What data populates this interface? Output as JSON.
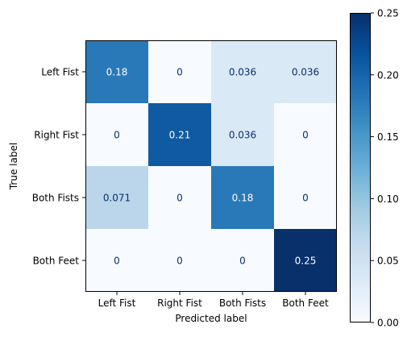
{
  "chart_data": {
    "type": "heatmap",
    "title": "",
    "xlabel": "Predicted label",
    "ylabel": "True label",
    "categories_x": [
      "Left Fist",
      "Right Fist",
      "Both Fists",
      "Both Feet"
    ],
    "categories_y": [
      "Left Fist",
      "Right Fist",
      "Both Fists",
      "Both Feet"
    ],
    "values": [
      [
        0.18,
        0,
        0.036,
        0.036
      ],
      [
        0,
        0.21,
        0.036,
        0
      ],
      [
        0.071,
        0,
        0.18,
        0
      ],
      [
        0,
        0,
        0,
        0.25
      ]
    ],
    "value_labels": [
      [
        "0.18",
        "0",
        "0.036",
        "0.036"
      ],
      [
        "0",
        "0.21",
        "0.036",
        "0"
      ],
      [
        "0.071",
        "0",
        "0.18",
        "0"
      ],
      [
        "0",
        "0",
        "0",
        "0.25"
      ]
    ],
    "colormap": "Blues",
    "vmin": 0,
    "vmax": 0.25,
    "colorbar": {
      "ticks": [
        0.0,
        0.05,
        0.1,
        0.15,
        0.2,
        0.25
      ],
      "tick_labels": [
        "0.00",
        "0.05",
        "0.10",
        "0.15",
        "0.20",
        "0.25"
      ]
    },
    "text_color_light": "#ffffff",
    "text_color_dark": "#08306b",
    "grid": false,
    "legend": "none"
  }
}
